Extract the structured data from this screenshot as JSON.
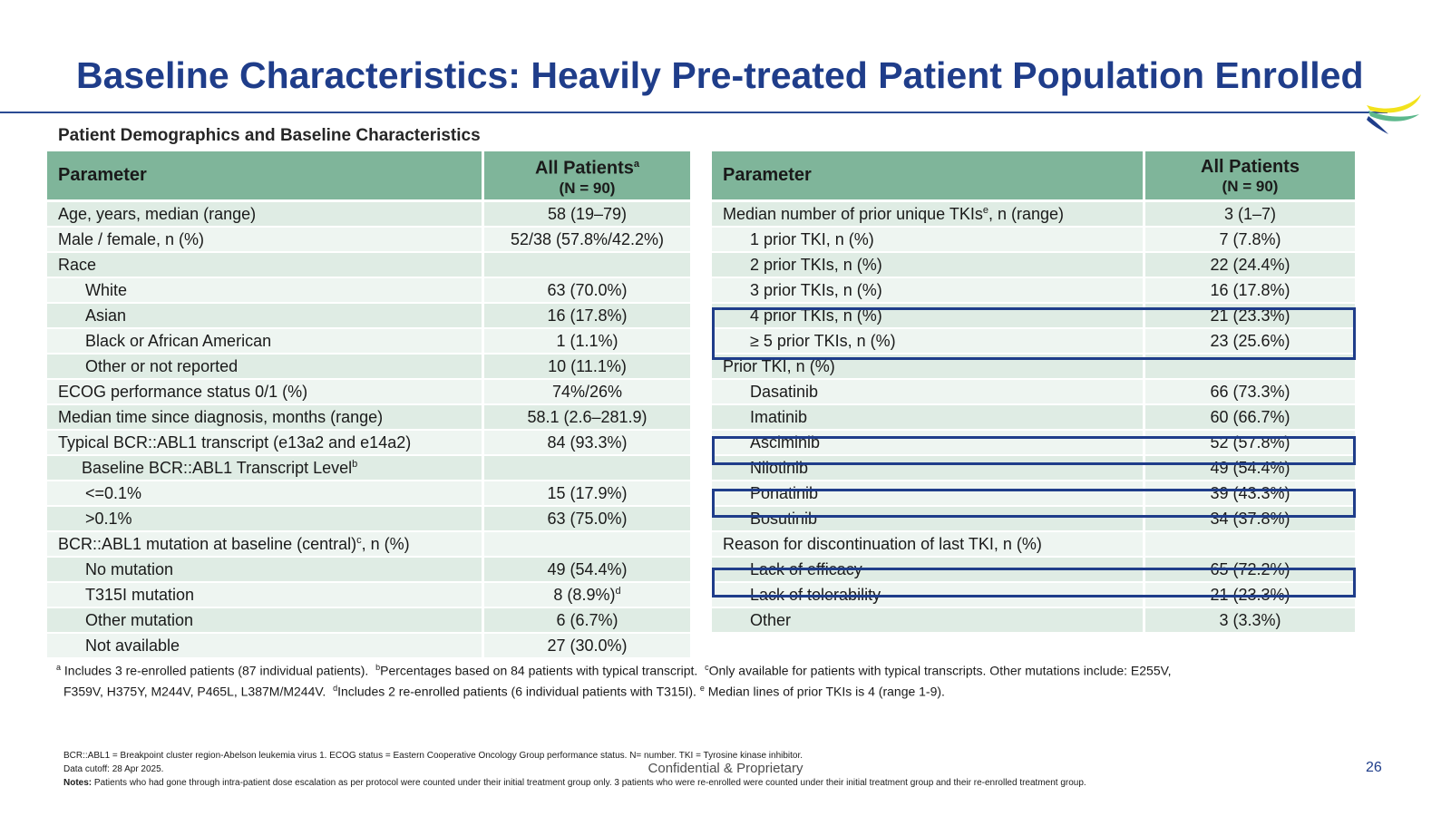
{
  "title": "Baseline Characteristics: Heavily Pre-treated Patient Population Enrolled",
  "subtitle": "Patient Demographics and Baseline Characteristics",
  "colors": {
    "title": "#1f3d8a",
    "header_fill": "#7fb59a",
    "row_fill_a": "#dfece4",
    "row_fill_b": "#eef5f1",
    "highlight_border": "#1f3d8a"
  },
  "left_table": {
    "header_param": "Parameter",
    "header_all": "All Patients",
    "header_all_sup": "a",
    "header_n": "(N = 90)",
    "rows": [
      {
        "p": "Age, years, median (range)",
        "v": "58 (19–79)"
      },
      {
        "p": "Male / female, n (%)",
        "v": "52/38 (57.8%/42.2%)"
      },
      {
        "p": "Race",
        "v": ""
      },
      {
        "p": "White",
        "v": "63 (70.0%)"
      },
      {
        "p": "Asian",
        "v": "16 (17.8%)"
      },
      {
        "p": "Black or African American",
        "v": "1 (1.1%)"
      },
      {
        "p": "Other or not reported",
        "v": "10 (11.1%)"
      },
      {
        "p": "ECOG performance status 0/1 (%)",
        "v": "74%/26%"
      },
      {
        "p": "Median time since diagnosis, months (range)",
        "v": "58.1 (2.6–281.9)"
      },
      {
        "p": "Typical BCR::ABL1 transcript (e13a2 and e14a2)",
        "v": "84 (93.3%)"
      },
      {
        "p": "Baseline BCR::ABL1 Transcript Level",
        "p_sup": "b",
        "v": ""
      },
      {
        "p": "<=0.1%",
        "v": "15 (17.9%)"
      },
      {
        "p": ">0.1%",
        "v": "63 (75.0%)"
      },
      {
        "p": "BCR::ABL1 mutation at baseline (central)",
        "p_sup": "c",
        "p_suffix": ", n (%)",
        "v": ""
      },
      {
        "p": "No mutation",
        "v": "49 (54.4%)"
      },
      {
        "p": "T315I mutation",
        "v": "8 (8.9%)",
        "v_sup": "d"
      },
      {
        "p": "Other mutation",
        "v": "6 (6.7%)"
      },
      {
        "p": "Not available",
        "v": "27 (30.0%)"
      }
    ]
  },
  "right_table": {
    "header_param": "Parameter",
    "header_all": "All Patients",
    "header_n": "(N = 90)",
    "rows": [
      {
        "p": "Median number of prior unique TKIs",
        "p_sup": "e",
        "p_suffix": ", n (range)",
        "v": "3 (1–7)"
      },
      {
        "p": "1 prior TKI, n (%)",
        "v": "7 (7.8%)"
      },
      {
        "p": "2 prior TKIs, n (%)",
        "v": "22 (24.4%)"
      },
      {
        "p": "3 prior TKIs, n (%)",
        "v": "16 (17.8%)"
      },
      {
        "p": "4 prior TKIs, n (%)",
        "v": "21 (23.3%)"
      },
      {
        "p": "≥ 5 prior TKIs, n (%)",
        "v": "23 (25.6%)"
      },
      {
        "p": "Prior TKI, n (%)",
        "v": ""
      },
      {
        "p": "Dasatinib",
        "v": "66 (73.3%)"
      },
      {
        "p": "Imatinib",
        "v": "60 (66.7%)"
      },
      {
        "p": "Asciminib",
        "v": "52 (57.8%)"
      },
      {
        "p": "Nilotinib",
        "v": "49 (54.4%)"
      },
      {
        "p": "Ponatinib",
        "v": "39 (43.3%)"
      },
      {
        "p": "Bosutinib",
        "v": "34 (37.8%)"
      },
      {
        "p": "Reason for discontinuation of last TKI, n (%)",
        "v": ""
      },
      {
        "p": "Lack of efficacy",
        "v": "65 (72.2%)"
      },
      {
        "p": "Lack of tolerability",
        "v": "21 (23.3%)"
      },
      {
        "p": "Other",
        "v": "3 (3.3%)"
      }
    ]
  },
  "footnotes": {
    "a_mark": "a",
    "a_text": " Includes 3 re-enrolled patients (87 individual patients).",
    "b_mark": "b",
    "b_text": "Percentages based on 84 patients with typical transcript.",
    "c_mark": "c",
    "c_text": "Only available for patients with typical transcripts. Other mutations include: E255V,",
    "line2_a": "F359V, H375Y, M244V, P465L, L387M/M244V.",
    "d_mark": "d",
    "d_text": "Includes 2 re-enrolled patients (6 individual patients with T315I).",
    "e_mark": "e",
    "e_text": " Median lines of prior TKIs is 4 (range 1-9)."
  },
  "abbreviations": "BCR::ABL1 = Breakpoint cluster region-Abelson leukemia virus 1. ECOG status = Eastern Cooperative Oncology Group performance status. N= number.  TKI = Tyrosine kinase inhibitor.",
  "data_cutoff": "Data cutoff: 28 Apr 2025.",
  "notes_label": "Notes:",
  "notes_text": " Patients who had gone through intra-patient dose escalation as per protocol were counted under their initial treatment group only. 3 patients who were re-enrolled were counted under their initial treatment group and their re-enrolled treatment group.",
  "confidential": "Confidential & Proprietary",
  "page_number": "26"
}
